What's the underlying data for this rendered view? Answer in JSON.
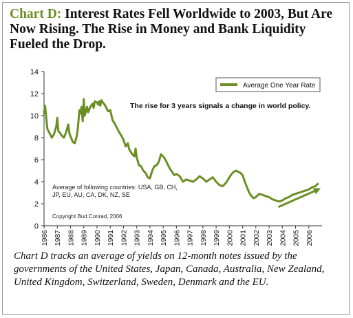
{
  "header": {
    "prefix": "Chart D:",
    "title": "Interest Rates Fell Worldwide to 2003, But Are Now Rising. The Rise in Money and Bank Liquidity Fueled the Drop."
  },
  "caption": "Chart D tracks an average of yields on 12-month notes issued by the governments of the United States, Japan, Canada, Australia, New Zealand, United Kingdom, Switzerland, Sweden, Denmark and the EU.",
  "chart_data": {
    "type": "line",
    "xlabel": "",
    "ylabel": "",
    "xlim": [
      1986,
      2007
    ],
    "ylim": [
      0,
      14
    ],
    "y_ticks": [
      0,
      2,
      4,
      6,
      8,
      10,
      12,
      14
    ],
    "x_ticks": [
      1986,
      1987,
      1988,
      1989,
      1990,
      1991,
      1992,
      1993,
      1994,
      1995,
      1996,
      1997,
      1998,
      1999,
      2000,
      2001,
      2002,
      2003,
      2004,
      2005,
      2006
    ],
    "grid": false,
    "legend": {
      "position": "top-right",
      "entries": [
        "Average One Year Rate"
      ]
    },
    "annotations": {
      "policy_note": "The rise for 3 years signals a change in world policy.",
      "countries_line1": "Average of following countries: USA, GB, CH,",
      "countries_line2": "JP, EU, AU, CA, DK, NZ, SE",
      "copyright": "Copyright Bud Conrad, 2006"
    },
    "trend_arrow": {
      "from": [
        2003.7,
        1.7
      ],
      "to": [
        2006.9,
        3.4
      ]
    },
    "colors": {
      "series": "#6b8e23",
      "axis": "#333333"
    },
    "series": [
      {
        "name": "Average One Year Rate",
        "x": [
          1986.0,
          1986.08,
          1986.25,
          1986.42,
          1986.58,
          1986.75,
          1986.92,
          1987.0,
          1987.08,
          1987.17,
          1987.33,
          1987.5,
          1987.67,
          1987.83,
          1987.92,
          1988.0,
          1988.08,
          1988.17,
          1988.33,
          1988.5,
          1988.58,
          1988.67,
          1988.75,
          1988.83,
          1988.92,
          1989.0,
          1989.08,
          1989.17,
          1989.25,
          1989.33,
          1989.5,
          1989.67,
          1989.75,
          1989.83,
          1990.0,
          1990.08,
          1990.17,
          1990.25,
          1990.33,
          1990.5,
          1990.58,
          1990.67,
          1990.83,
          1991.0,
          1991.17,
          1991.33,
          1991.5,
          1991.67,
          1991.83,
          1992.0,
          1992.17,
          1992.33,
          1992.42,
          1992.5,
          1992.67,
          1992.83,
          1992.92,
          1993.0,
          1993.17,
          1993.33,
          1993.5,
          1993.67,
          1993.83,
          1994.0,
          1994.17,
          1994.33,
          1994.5,
          1994.67,
          1994.83,
          1995.0,
          1995.17,
          1995.33,
          1995.5,
          1995.67,
          1995.83,
          1996.0,
          1996.25,
          1996.5,
          1996.75,
          1997.0,
          1997.25,
          1997.5,
          1997.75,
          1998.0,
          1998.25,
          1998.5,
          1998.75,
          1999.0,
          1999.25,
          1999.5,
          1999.75,
          2000.0,
          2000.17,
          2000.33,
          2000.5,
          2000.67,
          2000.83,
          2001.0,
          2001.17,
          2001.33,
          2001.5,
          2001.67,
          2001.83,
          2002.0,
          2002.25,
          2002.5,
          2002.75,
          2003.0,
          2003.25,
          2003.5,
          2003.75,
          2004.0,
          2004.25,
          2004.5,
          2004.75,
          2005.0,
          2005.25,
          2005.5,
          2005.75,
          2006.0,
          2006.25,
          2006.5,
          2006.67
        ],
        "y": [
          10.2,
          10.9,
          8.8,
          8.4,
          8.0,
          8.3,
          9.0,
          9.8,
          8.6,
          8.5,
          8.2,
          8.0,
          8.5,
          9.2,
          8.4,
          8.1,
          7.9,
          7.6,
          7.5,
          8.3,
          9.2,
          10.5,
          10.2,
          10.8,
          9.5,
          11.5,
          10.0,
          10.5,
          10.8,
          10.3,
          10.8,
          11.1,
          10.7,
          11.3,
          11.2,
          11.0,
          11.3,
          10.9,
          11.4,
          11.1,
          11.0,
          10.8,
          10.4,
          10.5,
          9.6,
          9.3,
          8.9,
          8.5,
          8.2,
          7.8,
          7.2,
          7.5,
          7.0,
          6.8,
          6.5,
          6.3,
          7.0,
          6.2,
          5.5,
          5.4,
          5.0,
          4.8,
          4.4,
          4.3,
          5.0,
          5.4,
          5.5,
          5.8,
          6.5,
          6.3,
          6.0,
          5.6,
          5.2,
          4.9,
          4.6,
          4.7,
          4.5,
          4.0,
          4.2,
          4.1,
          4.0,
          4.2,
          4.5,
          4.3,
          4.0,
          4.2,
          4.4,
          4.0,
          3.7,
          3.6,
          3.9,
          4.4,
          4.7,
          4.9,
          5.0,
          4.9,
          4.8,
          4.6,
          4.0,
          3.5,
          3.0,
          2.7,
          2.5,
          2.6,
          2.9,
          2.8,
          2.7,
          2.6,
          2.4,
          2.3,
          2.2,
          2.3,
          2.5,
          2.6,
          2.8,
          2.9,
          3.0,
          3.1,
          3.2,
          3.3,
          3.5,
          3.6,
          3.8
        ]
      }
    ]
  }
}
